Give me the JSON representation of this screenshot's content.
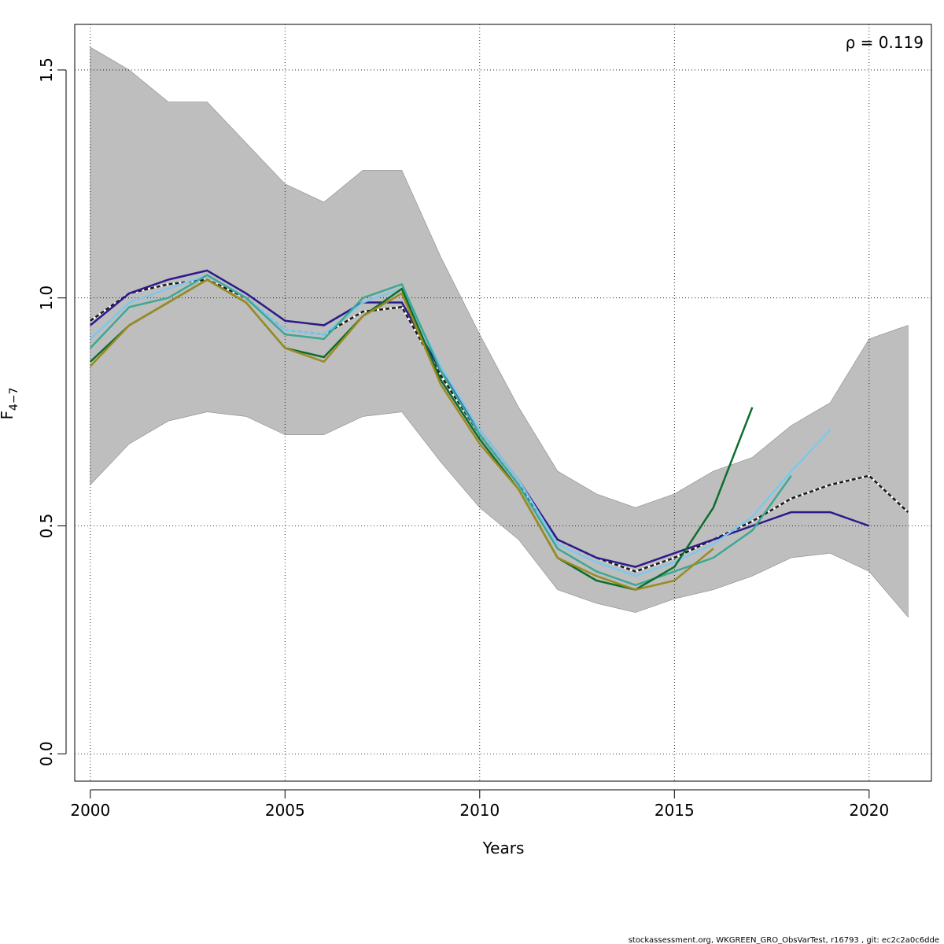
{
  "chart_data": {
    "type": "line",
    "xlabel": "Years",
    "ylabel": {
      "main": "F",
      "subscript": "4−7"
    },
    "annotation": "ρ = 0.119",
    "footer": "stockassessment.org, WKGREEN_GRO_ObsVarTest, r16793 , git: ec2c2a0c6dde",
    "xlim": [
      1999.6,
      2021.6
    ],
    "ylim": [
      -0.06,
      1.6
    ],
    "xticks": [
      2000,
      2005,
      2010,
      2015,
      2020
    ],
    "yticks": [
      0.0,
      0.5,
      1.0,
      1.5
    ],
    "ytick_labels": [
      "0.0",
      "0.5",
      "1.0",
      "1.5"
    ],
    "grid": true,
    "grid_style": "dotted",
    "band_color": "#bebebe",
    "confidence_band": {
      "x": [
        2000,
        2001,
        2002,
        2003,
        2004,
        2005,
        2006,
        2007,
        2008,
        2009,
        2010,
        2011,
        2012,
        2013,
        2014,
        2015,
        2016,
        2017,
        2018,
        2019,
        2020,
        2021
      ],
      "upper": [
        1.55,
        1.5,
        1.43,
        1.43,
        1.34,
        1.25,
        1.21,
        1.28,
        1.28,
        1.09,
        0.92,
        0.76,
        0.62,
        0.57,
        0.54,
        0.57,
        0.62,
        0.65,
        0.72,
        0.77,
        0.91,
        0.94
      ],
      "lower": [
        0.59,
        0.68,
        0.73,
        0.75,
        0.74,
        0.7,
        0.7,
        0.74,
        0.75,
        0.64,
        0.54,
        0.47,
        0.36,
        0.33,
        0.31,
        0.34,
        0.36,
        0.39,
        0.43,
        0.44,
        0.4,
        0.3
      ]
    },
    "series": [
      {
        "color": "#ffffff",
        "dash": false,
        "width": 2.5,
        "x": [
          2000,
          2001,
          2002,
          2003,
          2004,
          2005,
          2006,
          2007,
          2008,
          2009,
          2010,
          2011,
          2012,
          2013,
          2014,
          2015,
          2016,
          2017,
          2018,
          2019,
          2020,
          2021
        ],
        "values": [
          0.95,
          1.01,
          1.03,
          1.04,
          1.0,
          0.93,
          0.92,
          0.97,
          0.98,
          0.83,
          0.7,
          0.59,
          0.47,
          0.43,
          0.4,
          0.43,
          0.47,
          0.51,
          0.56,
          0.59,
          0.61,
          0.53
        ]
      },
      {
        "color": "#1a1a1a",
        "dash": true,
        "width": 2.5,
        "x": [
          2000,
          2001,
          2002,
          2003,
          2004,
          2005,
          2006,
          2007,
          2008,
          2009,
          2010,
          2011,
          2012,
          2013,
          2014,
          2015,
          2016,
          2017,
          2018,
          2019,
          2020,
          2021
        ],
        "values": [
          0.95,
          1.01,
          1.03,
          1.04,
          1.0,
          0.93,
          0.92,
          0.97,
          0.98,
          0.83,
          0.7,
          0.59,
          0.47,
          0.43,
          0.4,
          0.43,
          0.47,
          0.51,
          0.56,
          0.59,
          0.61,
          0.53
        ]
      },
      {
        "color": "#2b1a8c",
        "dash": false,
        "width": 2.5,
        "x": [
          2000,
          2001,
          2002,
          2003,
          2004,
          2005,
          2006,
          2007,
          2008,
          2009,
          2010,
          2011,
          2012,
          2013,
          2014,
          2015,
          2016,
          2017,
          2018,
          2019,
          2020
        ],
        "values": [
          0.94,
          1.01,
          1.04,
          1.06,
          1.01,
          0.95,
          0.94,
          0.99,
          0.99,
          0.84,
          0.71,
          0.6,
          0.47,
          0.43,
          0.41,
          0.44,
          0.47,
          0.5,
          0.53,
          0.53,
          0.5
        ]
      },
      {
        "color": "#7ec8ec",
        "dash": false,
        "width": 2.5,
        "x": [
          2000,
          2001,
          2002,
          2003,
          2004,
          2005,
          2006,
          2007,
          2008,
          2009,
          2010,
          2011,
          2012,
          2013,
          2014,
          2015,
          2016,
          2017,
          2018,
          2019
        ],
        "values": [
          0.91,
          0.99,
          1.02,
          1.05,
          1.0,
          0.93,
          0.92,
          0.99,
          1.02,
          0.85,
          0.71,
          0.6,
          0.46,
          0.42,
          0.39,
          0.42,
          0.46,
          0.52,
          0.62,
          0.71
        ]
      },
      {
        "color": "#3aa995",
        "dash": false,
        "width": 2.5,
        "x": [
          2000,
          2001,
          2002,
          2003,
          2004,
          2005,
          2006,
          2007,
          2008,
          2009,
          2010,
          2011,
          2012,
          2013,
          2014,
          2015,
          2016,
          2017,
          2018
        ],
        "values": [
          0.89,
          0.98,
          1.0,
          1.05,
          1.0,
          0.92,
          0.91,
          1.0,
          1.03,
          0.84,
          0.7,
          0.59,
          0.45,
          0.4,
          0.37,
          0.4,
          0.43,
          0.49,
          0.61
        ]
      },
      {
        "color": "#0c6e2e",
        "dash": false,
        "width": 2.5,
        "x": [
          2000,
          2001,
          2002,
          2003,
          2004,
          2005,
          2006,
          2007,
          2008,
          2009,
          2010,
          2011,
          2012,
          2013,
          2014,
          2015,
          2016,
          2017
        ],
        "values": [
          0.86,
          0.94,
          0.99,
          1.04,
          0.99,
          0.89,
          0.87,
          0.96,
          1.02,
          0.82,
          0.69,
          0.58,
          0.43,
          0.38,
          0.36,
          0.41,
          0.54,
          0.76
        ]
      },
      {
        "color": "#9c8a22",
        "dash": false,
        "width": 2.5,
        "x": [
          2000,
          2001,
          2002,
          2003,
          2004,
          2005,
          2006,
          2007,
          2008,
          2009,
          2010,
          2011,
          2012,
          2013,
          2014,
          2015,
          2016
        ],
        "values": [
          0.85,
          0.94,
          0.99,
          1.04,
          0.99,
          0.89,
          0.86,
          0.96,
          1.01,
          0.81,
          0.68,
          0.58,
          0.43,
          0.39,
          0.36,
          0.38,
          0.45
        ]
      }
    ]
  }
}
